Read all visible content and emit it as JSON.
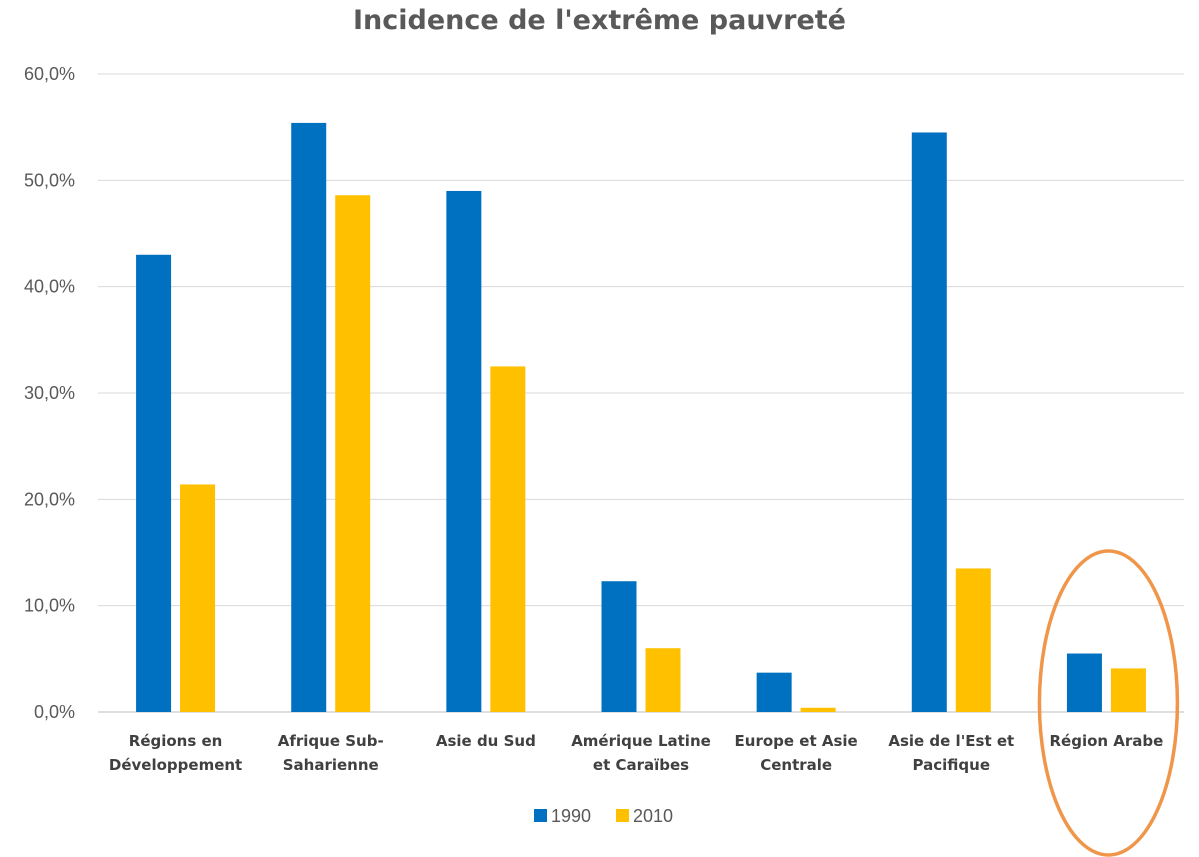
{
  "chart_data": {
    "type": "bar",
    "title": "Incidence de l'extrême pauvreté",
    "categories": [
      [
        "Régions en",
        "Développement"
      ],
      [
        "Afrique Sub-",
        "Saharienne"
      ],
      [
        "Asie du Sud"
      ],
      [
        "Amérique Latine",
        "et Caraïbes"
      ],
      [
        "Europe et Asie",
        "Centrale"
      ],
      [
        "Asie de l'Est et",
        "Pacifique"
      ],
      [
        "Région Arabe"
      ]
    ],
    "series": [
      {
        "name": "1990",
        "color": "#0070C0",
        "values": [
          43.0,
          55.4,
          49.0,
          12.3,
          3.7,
          54.5,
          5.5
        ]
      },
      {
        "name": "2010",
        "color": "#FFC000",
        "values": [
          21.4,
          48.6,
          32.5,
          6.0,
          0.4,
          13.5,
          4.1
        ]
      }
    ],
    "ylim": [
      0,
      60
    ],
    "yticks": [
      "0,0%",
      "10,0%",
      "20,0%",
      "30,0%",
      "40,0%",
      "50,0%",
      "60,0%"
    ],
    "grid": true,
    "legend_position": "bottom",
    "highlight": {
      "category_index": 6,
      "shape": "ellipse",
      "color": "#F0964A"
    }
  }
}
